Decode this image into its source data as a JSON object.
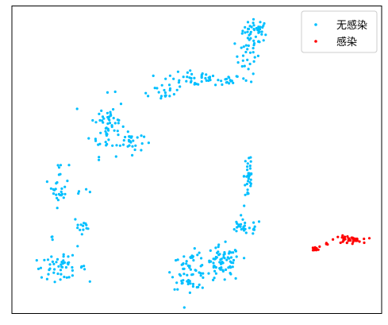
{
  "chart_data": {
    "type": "scatter",
    "title": "",
    "xlabel": "",
    "ylabel": "",
    "xlim": [
      0,
      100
    ],
    "ylim": [
      0,
      100
    ],
    "grid": false,
    "axes_ticks": false,
    "legend_position": "top-right",
    "series": [
      {
        "name": "无感染",
        "color": "#00bfff",
        "clusters": [
          {
            "cx": 66,
            "cy": 92,
            "spread": [
              3,
              3
            ],
            "n": 40
          },
          {
            "cx": 64,
            "cy": 84,
            "spread": [
              3,
              5
            ],
            "n": 28
          },
          {
            "cx": 52,
            "cy": 76,
            "spread": [
              10,
              2
            ],
            "n": 58
          },
          {
            "cx": 40,
            "cy": 72,
            "spread": [
              6,
              2
            ],
            "n": 18
          },
          {
            "cx": 26,
            "cy": 61,
            "spread": [
              4,
              8
            ],
            "n": 60
          },
          {
            "cx": 32,
            "cy": 56,
            "spread": [
              3,
              3
            ],
            "n": 26
          },
          {
            "cx": 13,
            "cy": 42,
            "spread": [
              2,
              6
            ],
            "n": 28
          },
          {
            "cx": 19,
            "cy": 39,
            "spread": [
              2,
              1
            ],
            "n": 4
          },
          {
            "cx": 19,
            "cy": 28,
            "spread": [
              2,
              3
            ],
            "n": 14
          },
          {
            "cx": 13,
            "cy": 15,
            "spread": [
              6,
              3
            ],
            "n": 50
          },
          {
            "cx": 11,
            "cy": 24,
            "spread": [
              1,
              1
            ],
            "n": 3
          },
          {
            "cx": 64,
            "cy": 45,
            "spread": [
              1,
              9
            ],
            "n": 34
          },
          {
            "cx": 63,
            "cy": 28,
            "spread": [
              4,
              2
            ],
            "n": 28
          },
          {
            "cx": 57,
            "cy": 16,
            "spread": [
              4,
              5
            ],
            "n": 75
          },
          {
            "cx": 48,
            "cy": 14,
            "spread": [
              4,
              5
            ],
            "n": 60
          }
        ]
      },
      {
        "name": "感染",
        "color": "#ff0000",
        "clusters": [
          {
            "cx": 91,
            "cy": 24,
            "spread": [
              3,
              1
            ],
            "n": 40
          },
          {
            "cx": 82,
            "cy": 21,
            "spread": [
              1,
              0.6
            ],
            "n": 14
          },
          {
            "cx": 85,
            "cy": 22.5,
            "spread": [
              0.5,
              0.4
            ],
            "n": 4
          }
        ]
      }
    ]
  }
}
